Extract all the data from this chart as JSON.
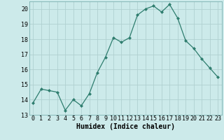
{
  "x": [
    0,
    1,
    2,
    3,
    4,
    5,
    6,
    7,
    8,
    9,
    10,
    11,
    12,
    13,
    14,
    15,
    16,
    17,
    18,
    19,
    20,
    21,
    22,
    23
  ],
  "y": [
    13.8,
    14.7,
    14.6,
    14.5,
    13.3,
    14.0,
    13.6,
    14.4,
    15.8,
    16.8,
    18.1,
    17.8,
    18.1,
    19.6,
    20.0,
    20.2,
    19.8,
    20.3,
    19.4,
    17.9,
    17.4,
    16.7,
    16.1,
    15.5
  ],
  "line_color": "#2e7d6e",
  "marker": "D",
  "marker_size": 2,
  "bg_color": "#cceaea",
  "grid_color": "#b0d0d0",
  "xlabel": "Humidex (Indice chaleur)",
  "xlim": [
    -0.5,
    23.5
  ],
  "ylim": [
    13,
    20.5
  ],
  "yticks": [
    13,
    14,
    15,
    16,
    17,
    18,
    19,
    20
  ],
  "xticks": [
    0,
    1,
    2,
    3,
    4,
    5,
    6,
    7,
    8,
    9,
    10,
    11,
    12,
    13,
    14,
    15,
    16,
    17,
    18,
    19,
    20,
    21,
    22,
    23
  ],
  "xlabel_fontsize": 7,
  "tick_fontsize": 6
}
